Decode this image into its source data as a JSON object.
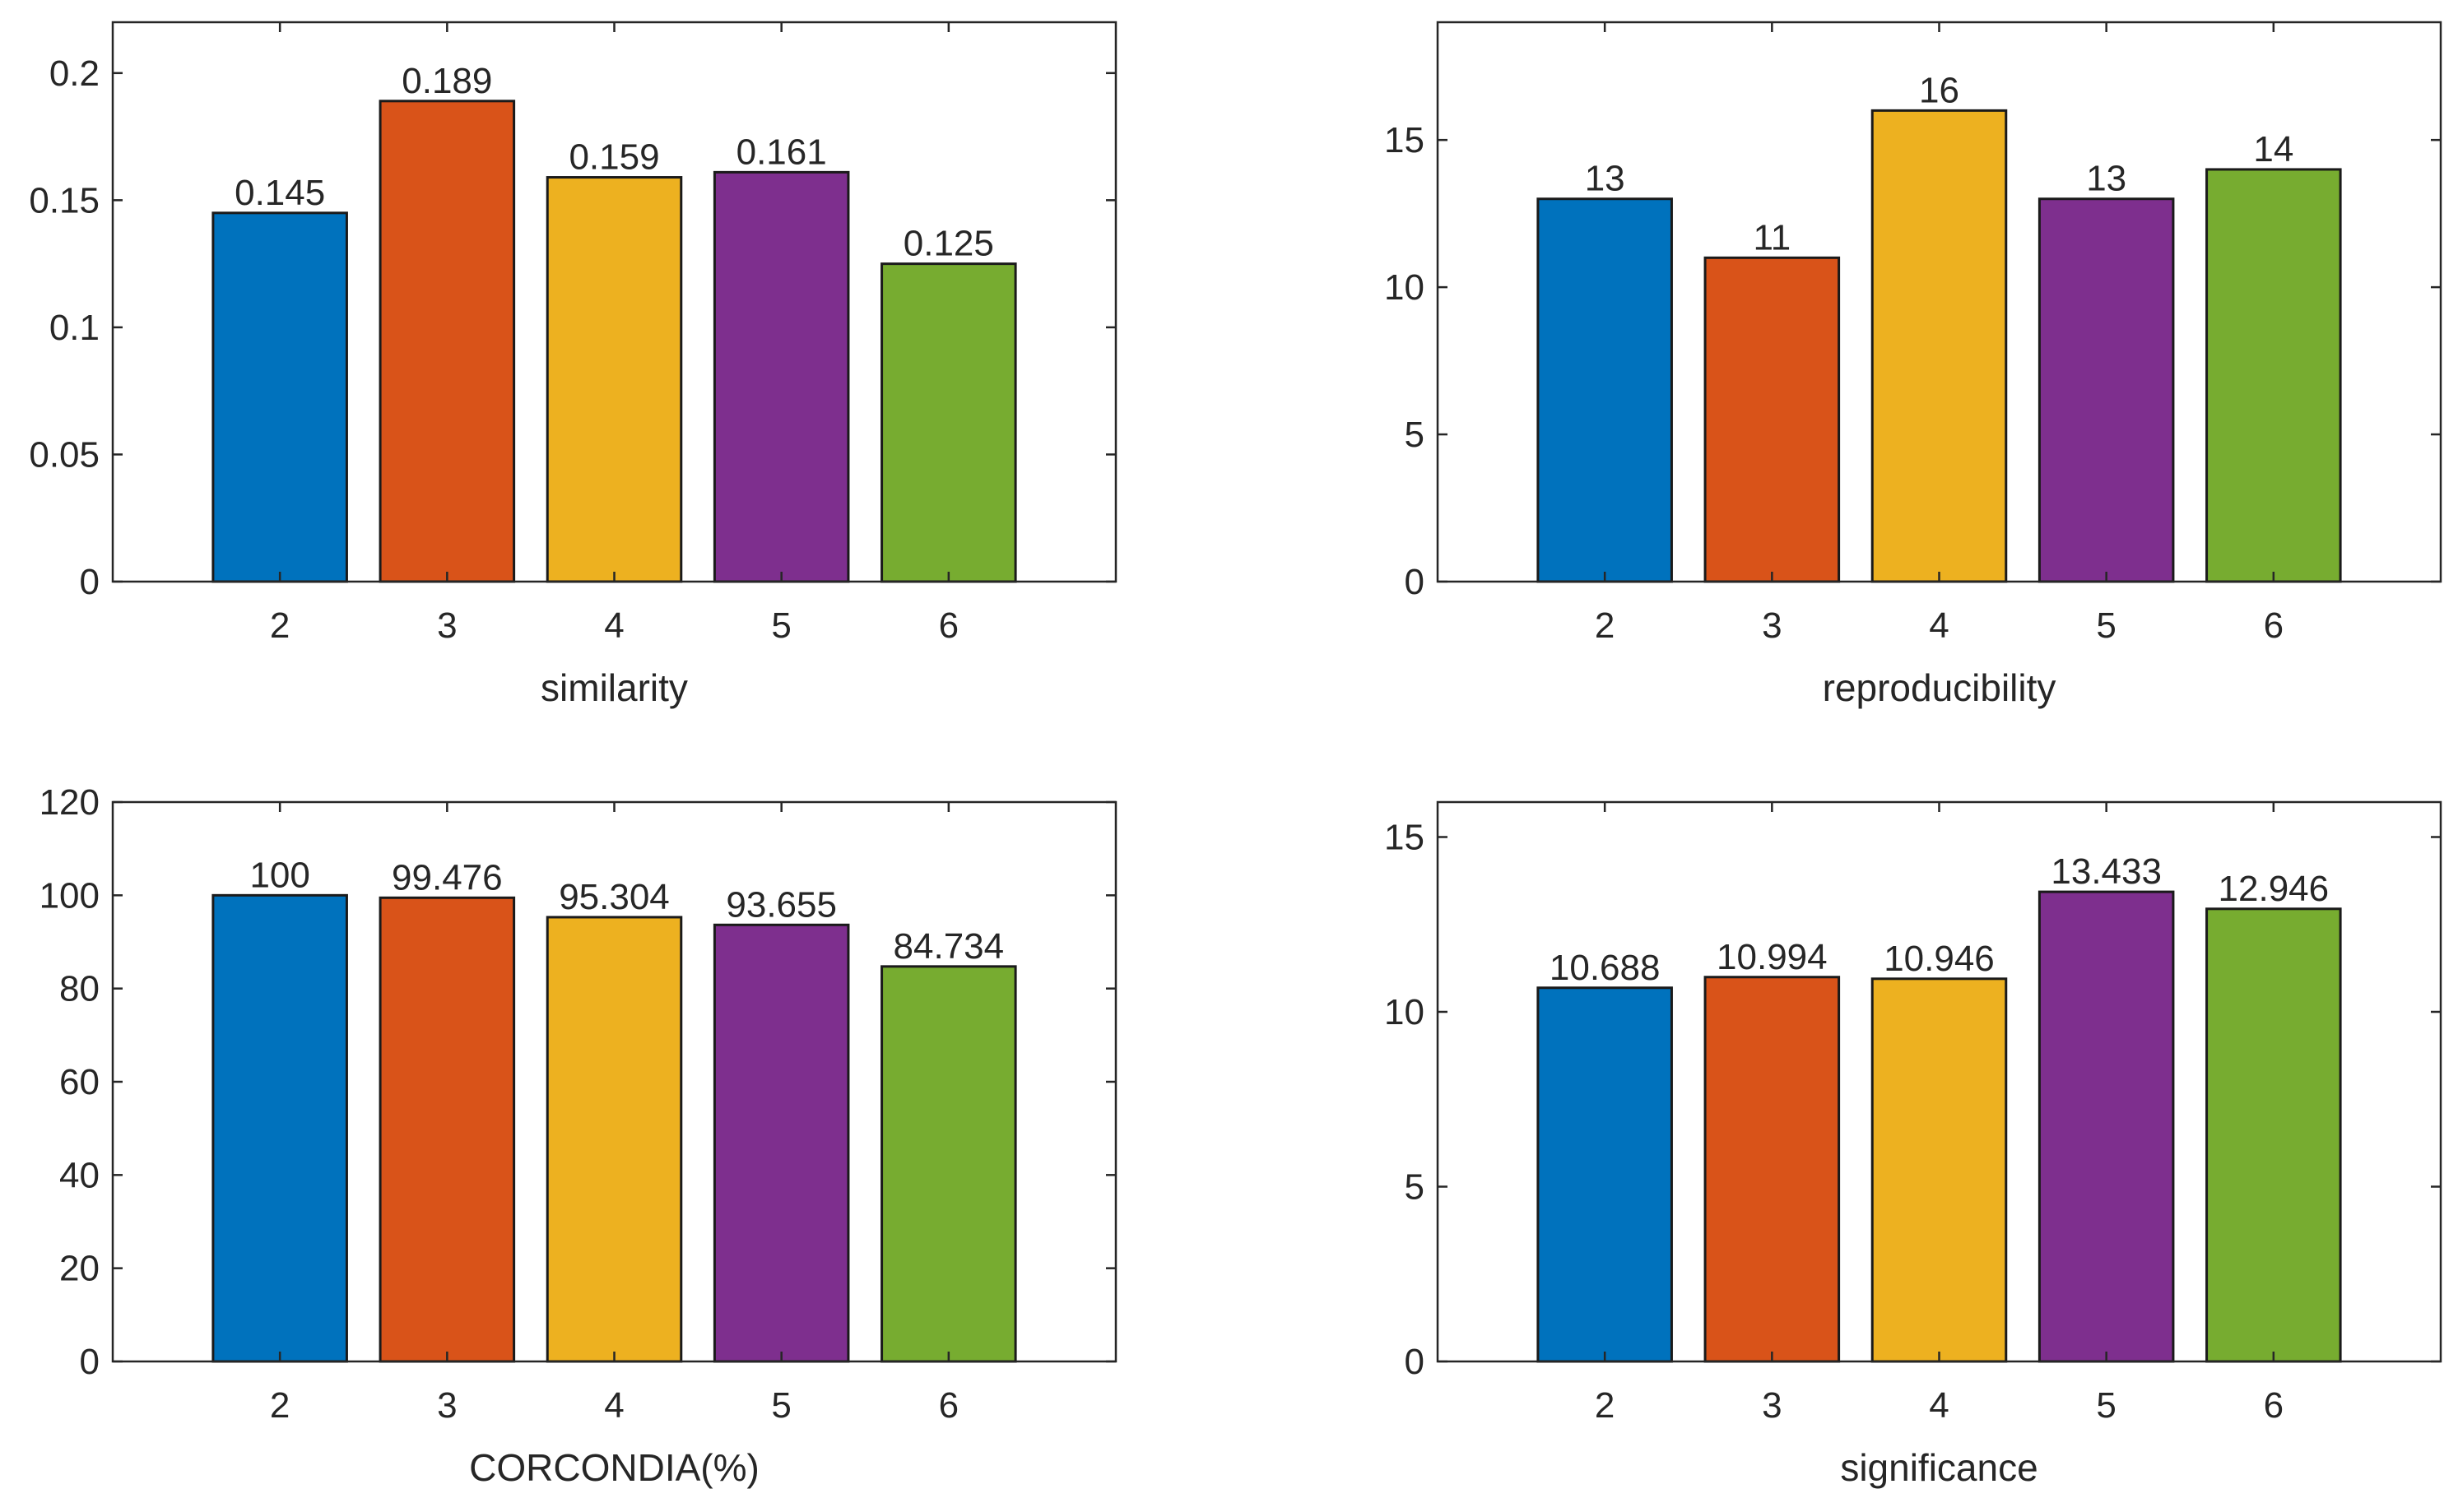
{
  "colors": [
    "#0072BD",
    "#D95319",
    "#EDB120",
    "#7E2F8E",
    "#77AC30"
  ],
  "chart_data": [
    {
      "type": "bar",
      "categories": [
        "2",
        "3",
        "4",
        "5",
        "6"
      ],
      "values": [
        0.145,
        0.189,
        0.159,
        0.161,
        0.125
      ],
      "value_labels": [
        "0.145",
        "0.189",
        "0.159",
        "0.161",
        "0.125"
      ],
      "xlabel": "similarity",
      "ylabel": "",
      "xlim": [
        1,
        7
      ],
      "ylim": [
        0,
        0.22
      ],
      "yticks": [
        0,
        0.05,
        0.1,
        0.15,
        0.2
      ],
      "ytick_labels": [
        "0",
        "0.05",
        "0.1",
        "0.15",
        "0.2"
      ],
      "position": "top-left"
    },
    {
      "type": "bar",
      "categories": [
        "2",
        "3",
        "4",
        "5",
        "6"
      ],
      "values": [
        13,
        11,
        16,
        13,
        14
      ],
      "value_labels": [
        "13",
        "11",
        "16",
        "13",
        "14"
      ],
      "xlabel": "reproducibility",
      "ylabel": "",
      "xlim": [
        1,
        7
      ],
      "ylim": [
        0,
        19
      ],
      "yticks": [
        0,
        5,
        10,
        15
      ],
      "ytick_labels": [
        "0",
        "5",
        "10",
        "15"
      ],
      "position": "top-right"
    },
    {
      "type": "bar",
      "categories": [
        "2",
        "3",
        "4",
        "5",
        "6"
      ],
      "values": [
        100,
        99.476,
        95.304,
        93.655,
        84.734
      ],
      "value_labels": [
        "100",
        "99.476",
        "95.304",
        "93.655",
        "84.734"
      ],
      "xlabel": "CORCONDIA(%)",
      "ylabel": "",
      "xlim": [
        1,
        7
      ],
      "ylim": [
        0,
        120
      ],
      "yticks": [
        0,
        20,
        40,
        60,
        80,
        100,
        120
      ],
      "ytick_labels": [
        "0",
        "20",
        "40",
        "60",
        "80",
        "100",
        "120"
      ],
      "position": "bottom-left"
    },
    {
      "type": "bar",
      "categories": [
        "2",
        "3",
        "4",
        "5",
        "6"
      ],
      "values": [
        10.688,
        10.994,
        10.946,
        13.433,
        12.946
      ],
      "value_labels": [
        "10.688",
        "10.994",
        "10.946",
        "13.433",
        "12.946"
      ],
      "xlabel": "significance",
      "ylabel": "",
      "xlim": [
        1,
        7
      ],
      "ylim": [
        0,
        16
      ],
      "yticks": [
        0,
        5,
        10,
        15
      ],
      "ytick_labels": [
        "0",
        "5",
        "10",
        "15"
      ],
      "position": "bottom-right"
    }
  ]
}
